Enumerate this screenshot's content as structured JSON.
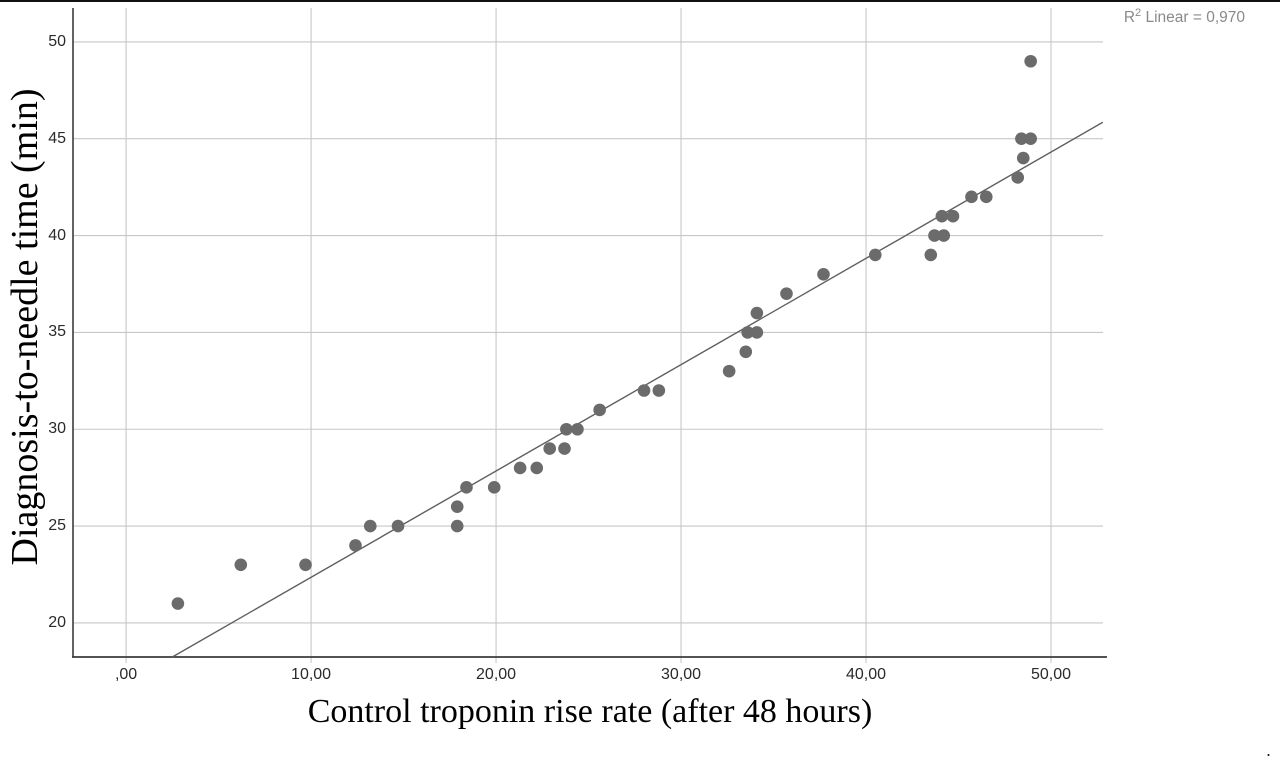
{
  "chart_data": {
    "type": "scatter",
    "title": "",
    "xlabel": "Control troponin rise rate (after 48 hours)",
    "ylabel": "Diagnosis-to-needle time (min)",
    "annotation": {
      "text": "R2 Linear = 0,970",
      "prefix": "R",
      "sup": "2",
      "suffix": " Linear = 0,970"
    },
    "xlim": [
      -2.87,
      52.81
    ],
    "ylim": [
      18.24,
      51.75
    ],
    "grid": true,
    "legend": "none",
    "x_ticks": [
      {
        "value": 0,
        "label": ",00"
      },
      {
        "value": 10,
        "label": "10,00"
      },
      {
        "value": 20,
        "label": "20,00"
      },
      {
        "value": 30,
        "label": "30,00"
      },
      {
        "value": 40,
        "label": "40,00"
      },
      {
        "value": 50,
        "label": "50,00"
      }
    ],
    "y_ticks": [
      {
        "value": 20,
        "label": "20"
      },
      {
        "value": 25,
        "label": "25"
      },
      {
        "value": 30,
        "label": "30"
      },
      {
        "value": 35,
        "label": "35"
      },
      {
        "value": 40,
        "label": "40"
      },
      {
        "value": 45,
        "label": "45"
      },
      {
        "value": 50,
        "label": "50"
      }
    ],
    "points": [
      [
        2.8,
        21
      ],
      [
        6.2,
        23
      ],
      [
        9.7,
        23
      ],
      [
        12.4,
        24
      ],
      [
        13.2,
        25
      ],
      [
        14.7,
        25
      ],
      [
        17.9,
        25
      ],
      [
        17.9,
        26
      ],
      [
        18.4,
        27
      ],
      [
        19.9,
        27
      ],
      [
        21.3,
        28
      ],
      [
        22.2,
        28
      ],
      [
        22.9,
        29
      ],
      [
        23.7,
        29
      ],
      [
        23.8,
        30
      ],
      [
        24.4,
        30
      ],
      [
        25.6,
        31
      ],
      [
        28.0,
        32
      ],
      [
        28.8,
        32
      ],
      [
        32.6,
        33
      ],
      [
        33.5,
        34
      ],
      [
        33.6,
        35
      ],
      [
        34.1,
        35
      ],
      [
        34.1,
        36
      ],
      [
        35.7,
        37
      ],
      [
        37.7,
        38
      ],
      [
        40.5,
        39
      ],
      [
        43.5,
        39
      ],
      [
        43.7,
        40
      ],
      [
        44.2,
        40
      ],
      [
        44.1,
        41
      ],
      [
        44.7,
        41
      ],
      [
        45.7,
        42
      ],
      [
        46.5,
        42
      ],
      [
        48.2,
        43
      ],
      [
        48.5,
        44
      ],
      [
        48.4,
        45
      ],
      [
        48.9,
        45
      ],
      [
        48.9,
        49
      ]
    ],
    "fit_line": {
      "x1": 2.5,
      "y1": 18.24,
      "x2": 52.8,
      "y2": 45.85
    },
    "colors": {
      "dot": "#6b6b6b",
      "grid": "#c7c7c7",
      "axis": "#3c3c3c",
      "fit_line": "#5f5f5f",
      "tick_text": "#2a2a2a",
      "annotation_text": "#8a8a8a",
      "top_border": "#111111"
    }
  },
  "footer": {
    "stray_period": "."
  }
}
